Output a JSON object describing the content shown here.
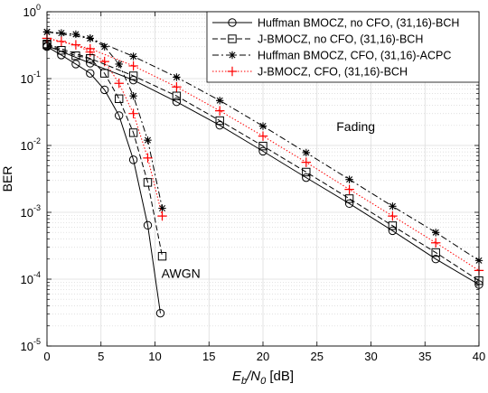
{
  "chart_data": {
    "type": "line",
    "xlabel_main": "E",
    "xlabel_sub1": "b",
    "xlabel_mid": "/N",
    "xlabel_sub2": "0",
    "xlabel_unit": " [dB]",
    "ylabel": "BER",
    "xlim": [
      0,
      40
    ],
    "ylim": [
      1e-05,
      1
    ],
    "yscale": "log",
    "grid": true,
    "legend_position": "top-right",
    "x_ticks": [
      "0",
      "5",
      "10",
      "15",
      "20",
      "25",
      "30",
      "35",
      "40"
    ],
    "y_ticks": [
      {
        "base": "10",
        "exp": "0"
      },
      {
        "base": "10",
        "exp": "-1"
      },
      {
        "base": "10",
        "exp": "-2"
      },
      {
        "base": "10",
        "exp": "-3"
      },
      {
        "base": "10",
        "exp": "-4"
      },
      {
        "base": "10",
        "exp": "-5"
      }
    ],
    "annotations": [
      {
        "text": "Fading",
        "x": 26.8,
        "y": 0.0165
      },
      {
        "text": "AWGN",
        "x": 10.6,
        "y": 0.000105
      }
    ],
    "series": [
      {
        "name": "Huffman BMOCZ, no CFO, (31,16)-BCH",
        "group": "AWGN",
        "color": "#000000",
        "line": "solid",
        "marker": "circle",
        "x": [
          0,
          1.33,
          2.67,
          4,
          5.33,
          6.67,
          8,
          9.33,
          10.5
        ],
        "y": [
          0.3,
          0.225,
          0.165,
          0.12,
          0.068,
          0.028,
          0.0061,
          0.00064,
          3.1e-05
        ]
      },
      {
        "name": "J-BMOCZ, no CFO, (31,16)-BCH",
        "group": "AWGN",
        "color": "#000000",
        "line": "dashed",
        "marker": "square",
        "x": [
          0,
          1.33,
          2.67,
          4,
          5.33,
          6.67,
          8,
          9.33,
          10.67
        ],
        "y": [
          0.32,
          0.265,
          0.22,
          0.2,
          0.12,
          0.05,
          0.0155,
          0.0028,
          0.00022
        ]
      },
      {
        "name": "Huffman BMOCZ, CFO, (31,16)-ACPC",
        "group": "AWGN",
        "color": "#000000",
        "line": "dashdot",
        "marker": "asterisk",
        "x": [
          0,
          1.33,
          2.67,
          4,
          5.33,
          6.67,
          8,
          9.33,
          10.67
        ],
        "y": [
          0.5,
          0.48,
          0.46,
          0.4,
          0.3,
          0.165,
          0.055,
          0.012,
          0.00115
        ]
      },
      {
        "name": "J-BMOCZ, CFO, (31,16)-BCH",
        "group": "AWGN",
        "color": "#ff0000",
        "line": "dotted",
        "marker": "plus",
        "x": [
          0,
          1.33,
          2.67,
          4,
          5.33,
          6.67,
          8,
          9.33,
          10.67
        ],
        "y": [
          0.4,
          0.36,
          0.32,
          0.25,
          0.18,
          0.085,
          0.03,
          0.0065,
          0.00088
        ]
      },
      {
        "name": "Huffman BMOCZ, no CFO, (31,16)-BCH",
        "group": "Fading",
        "color": "#000000",
        "line": "solid",
        "marker": "circle",
        "x": [
          0,
          4,
          8,
          12,
          16,
          20,
          24,
          28,
          32,
          36,
          40
        ],
        "y": [
          0.31,
          0.17,
          0.095,
          0.045,
          0.02,
          0.0082,
          0.0033,
          0.00135,
          0.00053,
          0.0002,
          8.3e-05
        ]
      },
      {
        "name": "J-BMOCZ, no CFO, (31,16)-BCH",
        "group": "Fading",
        "color": "#000000",
        "line": "dashed",
        "marker": "square",
        "x": [
          0,
          4,
          8,
          12,
          16,
          20,
          24,
          28,
          32,
          36,
          40
        ],
        "y": [
          0.33,
          0.2,
          0.11,
          0.055,
          0.0235,
          0.0098,
          0.004,
          0.0016,
          0.00063,
          0.00025,
          9.5e-05
        ]
      },
      {
        "name": "Huffman BMOCZ, CFO, (31,16)-ACPC",
        "group": "Fading",
        "color": "#000000",
        "line": "dashdot",
        "marker": "asterisk",
        "x": [
          0,
          4,
          8,
          12,
          16,
          20,
          24,
          28,
          32,
          36,
          40
        ],
        "y": [
          0.5,
          0.4,
          0.215,
          0.105,
          0.047,
          0.0195,
          0.0078,
          0.0031,
          0.00123,
          0.0005,
          0.00019
        ]
      },
      {
        "name": "J-BMOCZ, CFO, (31,16)-BCH",
        "group": "Fading",
        "color": "#ff0000",
        "line": "dotted",
        "marker": "plus",
        "x": [
          0,
          4,
          8,
          12,
          16,
          20,
          24,
          28,
          32,
          36,
          40
        ],
        "y": [
          0.4,
          0.28,
          0.155,
          0.075,
          0.033,
          0.0138,
          0.0056,
          0.0022,
          0.00088,
          0.00035,
          0.000135
        ]
      }
    ]
  }
}
